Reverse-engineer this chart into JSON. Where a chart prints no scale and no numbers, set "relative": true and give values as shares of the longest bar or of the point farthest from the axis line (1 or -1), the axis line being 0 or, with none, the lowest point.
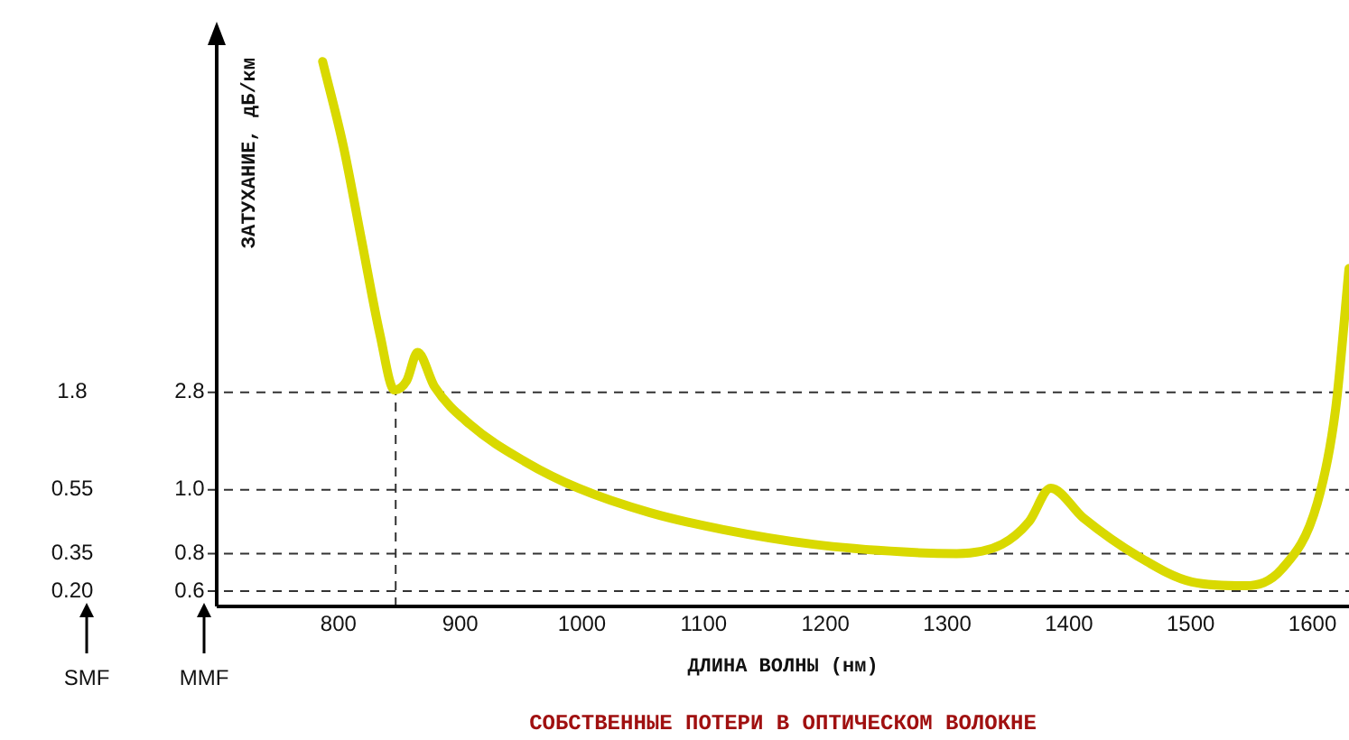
{
  "chart_data": {
    "type": "line",
    "title": "СОБСТВЕННЫЕ ПОТЕРИ В ОПТИЧЕСКОМ ВОЛОКНЕ",
    "xlabel": "ДЛИНА ВОЛНЫ (нм)",
    "ylabel": "ЗАТУХАНИЕ, дБ/км",
    "relative": true,
    "xlim": [
      700,
      1630
    ],
    "xticks": [
      800,
      900,
      1000,
      1100,
      1200,
      1300,
      1400,
      1500,
      1600
    ],
    "x": [
      787,
      804,
      819,
      834,
      846,
      856,
      865,
      879,
      908,
      953,
      997,
      1056,
      1116,
      1190,
      1264,
      1308,
      1345,
      1367,
      1385,
      1412,
      1456,
      1501,
      1545,
      1575,
      1604,
      1619,
      1630
    ],
    "series": [
      {
        "color": "#d9d900",
        "values": [
          1.0,
          0.845,
          0.672,
          0.5,
          0.397,
          0.414,
          0.466,
          0.403,
          0.334,
          0.266,
          0.217,
          0.172,
          0.141,
          0.114,
          0.1,
          0.097,
          0.114,
          0.155,
          0.217,
          0.162,
          0.093,
          0.045,
          0.038,
          0.069,
          0.19,
          0.362,
          0.62
        ]
      }
    ],
    "ref_lines": [
      {
        "axis": "y",
        "value": 0.393,
        "line_style": "dashed"
      },
      {
        "axis": "y",
        "value": 0.214,
        "line_style": "dashed"
      },
      {
        "axis": "y",
        "value": 0.097,
        "line_style": "dashed"
      },
      {
        "axis": "y",
        "value": 0.028,
        "line_style": "dashed"
      },
      {
        "axis": "x",
        "value": 847,
        "line_style": "dashed"
      }
    ],
    "annotations": [
      "1.8",
      "2.8",
      "0.55",
      "1.0",
      "0.35",
      "0.8",
      "0.20",
      "0.6",
      "SMF",
      "MMF"
    ],
    "grid": false,
    "legend": false,
    "marker": "none",
    "line_style": "solid"
  }
}
